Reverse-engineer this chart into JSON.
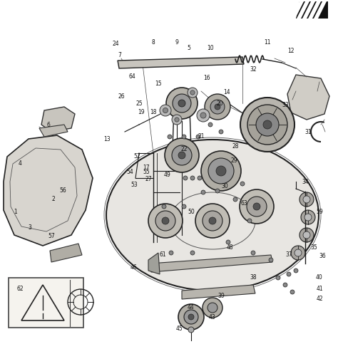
{
  "title": "",
  "bg_color": "#ffffff",
  "line_color": "#1a1a1a",
  "label_color": "#111111",
  "fig_width": 4.74,
  "fig_height": 4.83,
  "dpi": 100
}
